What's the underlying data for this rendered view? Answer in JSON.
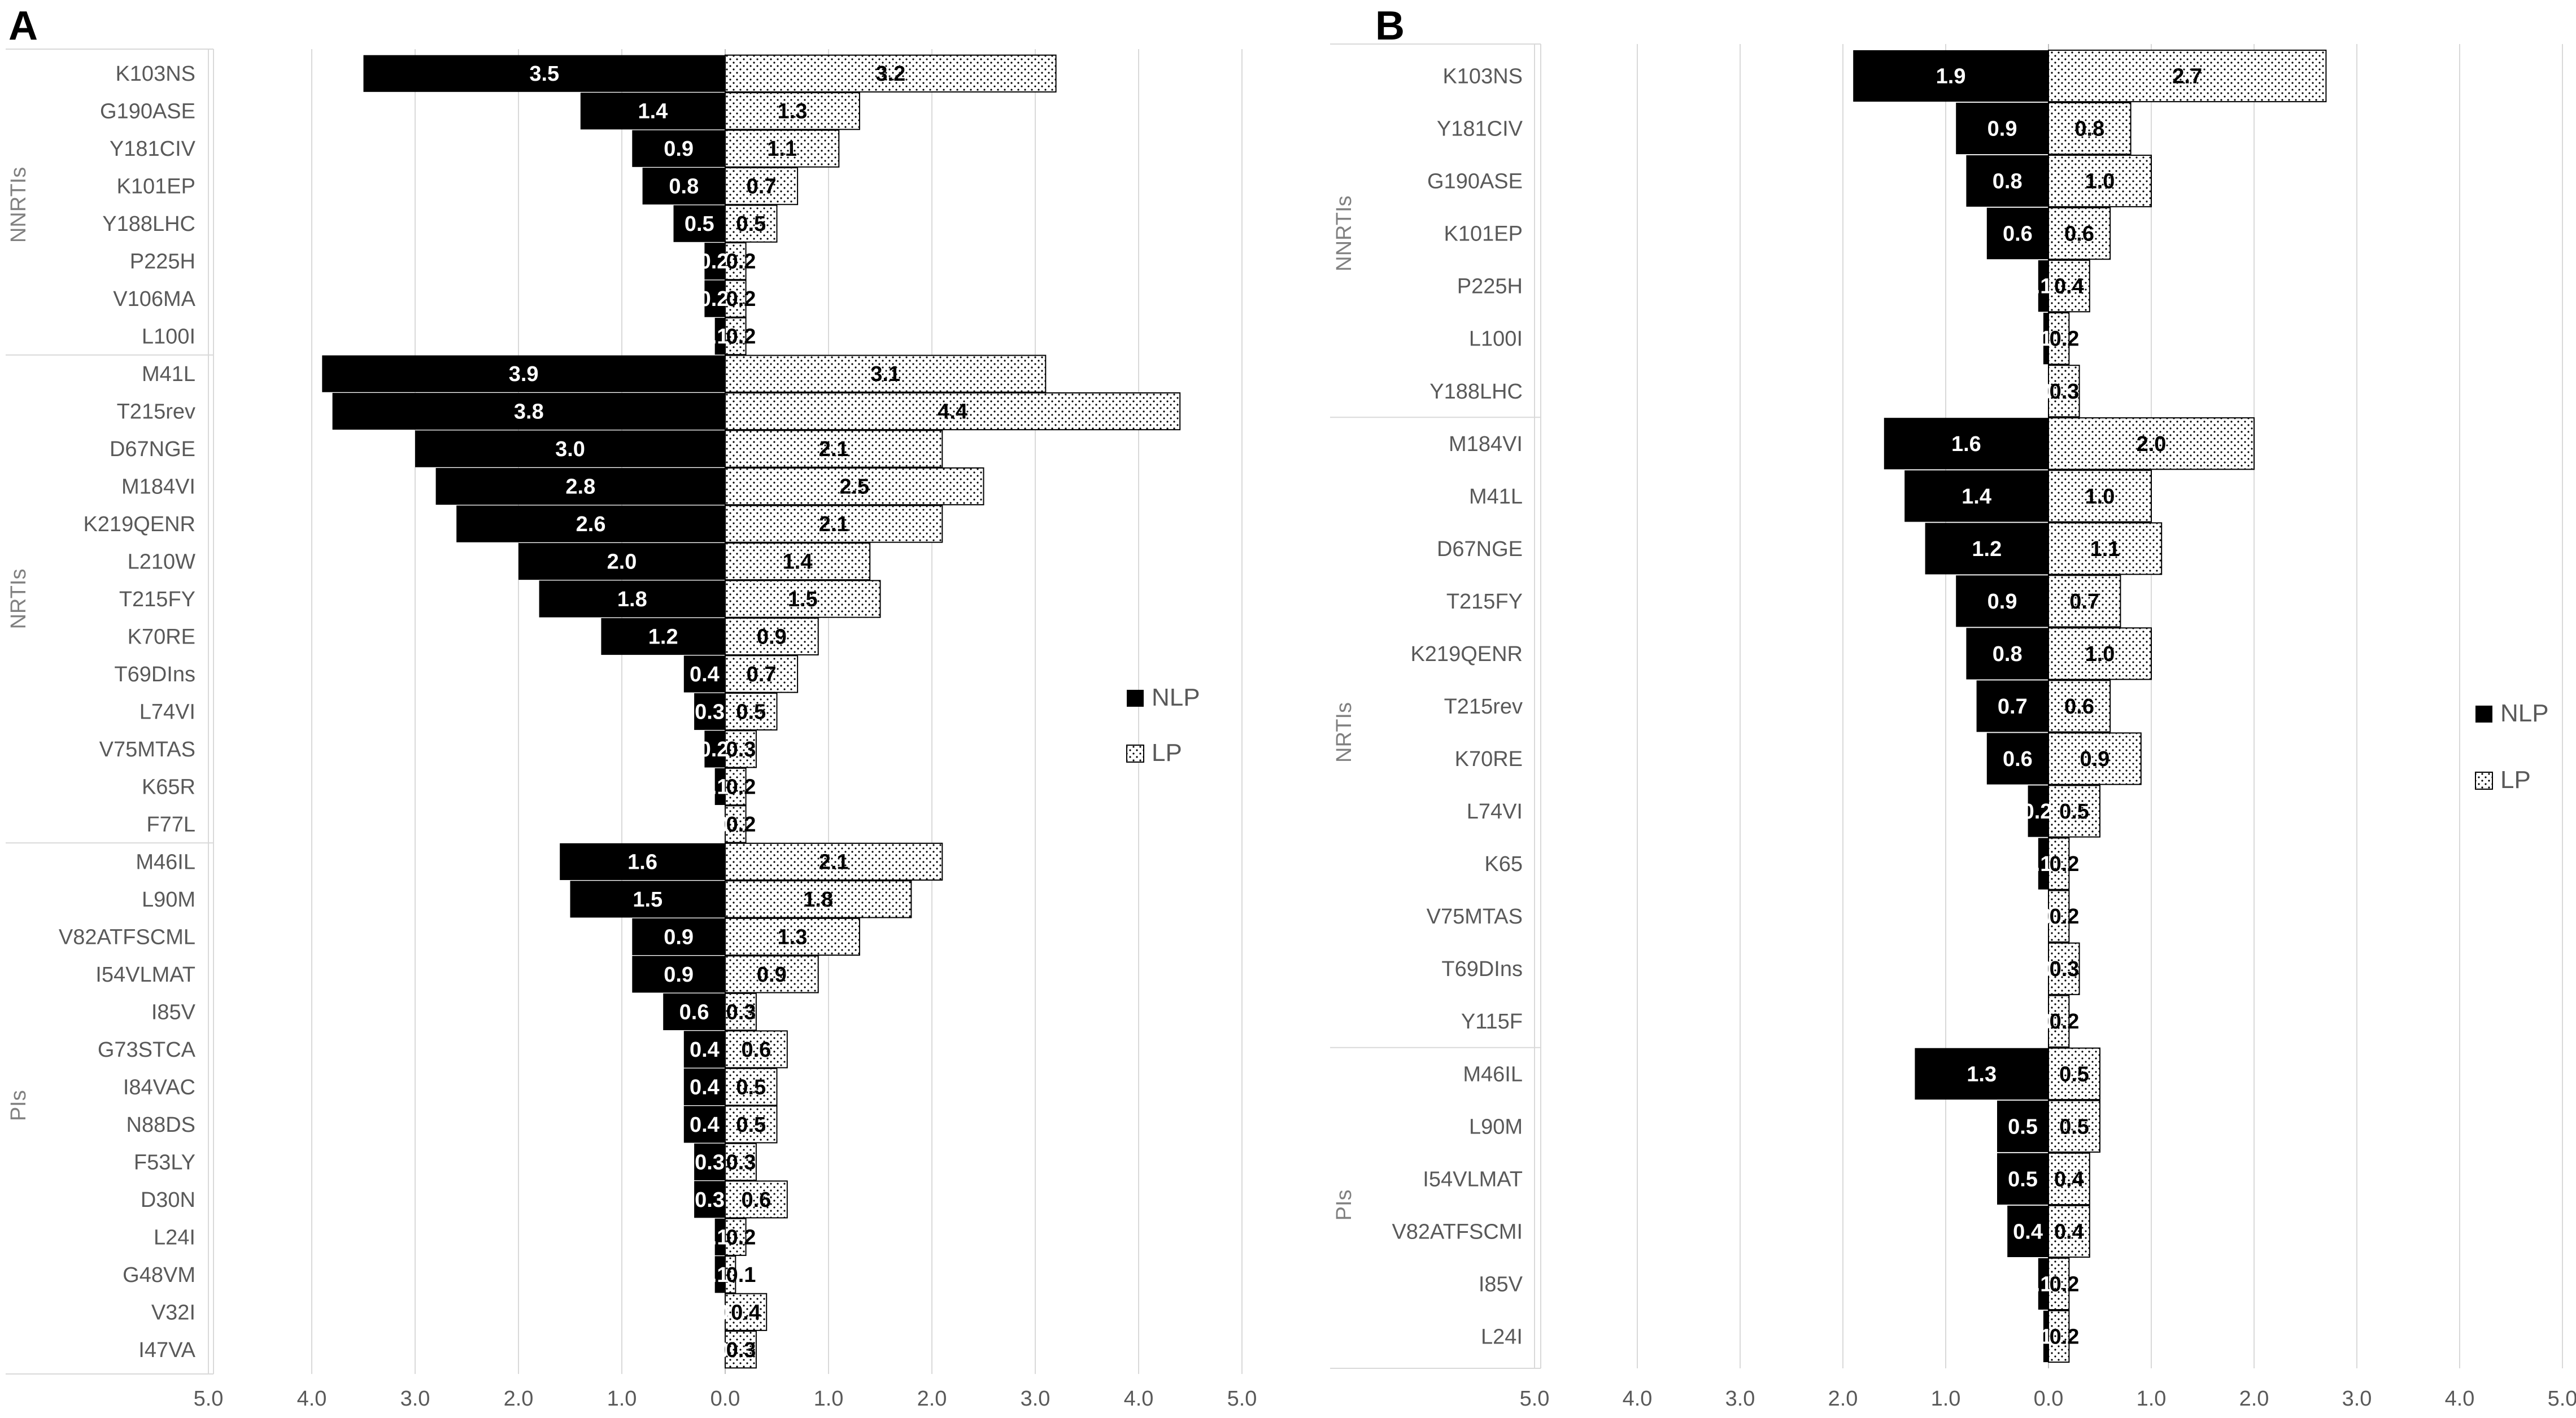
{
  "colors": {
    "nlp": "#000000",
    "lp_fill": "#ffffff",
    "lp_dots": "#000000",
    "grid": "#d9d9d9",
    "text": "#595959"
  },
  "chart_data": [
    {
      "type": "bar",
      "orientation": "horizontal-back-to-back",
      "panel": "A",
      "xlim": [
        -5.0,
        5.0
      ],
      "ticks": [
        "5.0",
        "4.0",
        "3.0",
        "2.0",
        "1.0",
        "0.0",
        "1.0",
        "2.0",
        "3.0",
        "4.0",
        "5.0"
      ],
      "legend": {
        "position": "right",
        "entries": [
          "NLP",
          "LP"
        ]
      },
      "grid": true,
      "groups": [
        {
          "name": "NNRTIs",
          "categories": [
            {
              "label": "K103NS",
              "nlp": 3.5,
              "lp": 3.2
            },
            {
              "label": "G190ASE",
              "nlp": 1.4,
              "lp": 1.3
            },
            {
              "label": "Y181CIV",
              "nlp": 0.9,
              "lp": 1.1
            },
            {
              "label": "K101EP",
              "nlp": 0.8,
              "lp": 0.7
            },
            {
              "label": "Y188LHC",
              "nlp": 0.5,
              "lp": 0.5
            },
            {
              "label": "P225H",
              "nlp": 0.2,
              "lp": 0.2
            },
            {
              "label": "V106MA",
              "nlp": 0.2,
              "lp": 0.2
            },
            {
              "label": "L100I",
              "nlp": 0.1,
              "lp": 0.2
            }
          ]
        },
        {
          "name": "NRTIs",
          "categories": [
            {
              "label": "M41L",
              "nlp": 3.9,
              "lp": 3.1
            },
            {
              "label": "T215rev",
              "nlp": 3.8,
              "lp": 4.4
            },
            {
              "label": "D67NGE",
              "nlp": 3.0,
              "lp": 2.1
            },
            {
              "label": "M184VI",
              "nlp": 2.8,
              "lp": 2.5
            },
            {
              "label": "K219QENR",
              "nlp": 2.6,
              "lp": 2.1
            },
            {
              "label": "L210W",
              "nlp": 2.0,
              "lp": 1.4
            },
            {
              "label": "T215FY",
              "nlp": 1.8,
              "lp": 1.5
            },
            {
              "label": "K70RE",
              "nlp": 1.2,
              "lp": 0.9
            },
            {
              "label": "T69DIns",
              "nlp": 0.4,
              "lp": 0.7
            },
            {
              "label": "L74VI",
              "nlp": 0.3,
              "lp": 0.5
            },
            {
              "label": "V75MTAS",
              "nlp": 0.2,
              "lp": 0.3
            },
            {
              "label": "K65R",
              "nlp": 0.1,
              "lp": 0.2
            },
            {
              "label": "F77L",
              "nlp": 0.0,
              "lp": 0.2
            }
          ]
        },
        {
          "name": "PIs",
          "categories": [
            {
              "label": "M46IL",
              "nlp": 1.6,
              "lp": 2.1
            },
            {
              "label": "L90M",
              "nlp": 1.5,
              "lp": 1.8
            },
            {
              "label": "V82ATFSCML",
              "nlp": 0.9,
              "lp": 1.3
            },
            {
              "label": "I54VLMAT",
              "nlp": 0.9,
              "lp": 0.9
            },
            {
              "label": "I85V",
              "nlp": 0.6,
              "lp": 0.3
            },
            {
              "label": "G73STCA",
              "nlp": 0.4,
              "lp": 0.6
            },
            {
              "label": "I84VAC",
              "nlp": 0.4,
              "lp": 0.5
            },
            {
              "label": "N88DS",
              "nlp": 0.4,
              "lp": 0.5
            },
            {
              "label": "F53LY",
              "nlp": 0.3,
              "lp": 0.3
            },
            {
              "label": "D30N",
              "nlp": 0.3,
              "lp": 0.6
            },
            {
              "label": "L24I",
              "nlp": 0.1,
              "lp": 0.2
            },
            {
              "label": "G48VM",
              "nlp": 0.1,
              "lp": 0.1
            },
            {
              "label": "V32I",
              "nlp": 0.0,
              "lp": 0.4
            },
            {
              "label": "I47VA",
              "nlp": 0.0,
              "lp": 0.3
            }
          ]
        }
      ]
    },
    {
      "type": "bar",
      "orientation": "horizontal-back-to-back",
      "panel": "B",
      "xlim": [
        -5.0,
        5.0
      ],
      "ticks": [
        "5.0",
        "4.0",
        "3.0",
        "2.0",
        "1.0",
        "0.0",
        "1.0",
        "2.0",
        "3.0",
        "4.0",
        "5.0"
      ],
      "legend": {
        "position": "right",
        "entries": [
          "NLP",
          "LP"
        ]
      },
      "grid": true,
      "groups": [
        {
          "name": "NNRTIs",
          "categories": [
            {
              "label": "K103NS",
              "nlp": 1.9,
              "lp": 2.7
            },
            {
              "label": "Y181CIV",
              "nlp": 0.9,
              "lp": 0.8
            },
            {
              "label": "G190ASE",
              "nlp": 0.8,
              "lp": 1.0
            },
            {
              "label": "K101EP",
              "nlp": 0.6,
              "lp": 0.6
            },
            {
              "label": "P225H",
              "nlp": 0.1,
              "lp": 0.4
            },
            {
              "label": "L100I",
              "nlp": 0.05,
              "lp": 0.2
            },
            {
              "label": "Y188LHC",
              "nlp": 0.0,
              "lp": 0.3
            }
          ]
        },
        {
          "name": "NRTIs",
          "categories": [
            {
              "label": "M184VI",
              "nlp": 1.6,
              "lp": 2.0
            },
            {
              "label": "M41L",
              "nlp": 1.4,
              "lp": 1.0
            },
            {
              "label": "D67NGE",
              "nlp": 1.2,
              "lp": 1.1
            },
            {
              "label": "T215FY",
              "nlp": 0.9,
              "lp": 0.7
            },
            {
              "label": "K219QENR",
              "nlp": 0.8,
              "lp": 1.0
            },
            {
              "label": "T215rev",
              "nlp": 0.7,
              "lp": 0.6
            },
            {
              "label": "K70RE",
              "nlp": 0.6,
              "lp": 0.9
            },
            {
              "label": "L74VI",
              "nlp": 0.2,
              "lp": 0.5
            },
            {
              "label": "K65",
              "nlp": 0.1,
              "lp": 0.2
            },
            {
              "label": "V75MTAS",
              "nlp": 0.0,
              "lp": 0.2
            },
            {
              "label": "T69DIns",
              "nlp": 0.0,
              "lp": 0.3
            },
            {
              "label": "Y115F",
              "nlp": 0.0,
              "lp": 0.2
            }
          ]
        },
        {
          "name": "PIs",
          "categories": [
            {
              "label": "M46IL",
              "nlp": 1.3,
              "lp": 0.5
            },
            {
              "label": "L90M",
              "nlp": 0.5,
              "lp": 0.5
            },
            {
              "label": "I54VLMAT",
              "nlp": 0.5,
              "lp": 0.4
            },
            {
              "label": "V82ATFSCMI",
              "nlp": 0.4,
              "lp": 0.4
            },
            {
              "label": "I85V",
              "nlp": 0.1,
              "lp": 0.2
            },
            {
              "label": "L24I",
              "nlp": 0.05,
              "lp": 0.2
            }
          ]
        }
      ]
    }
  ]
}
